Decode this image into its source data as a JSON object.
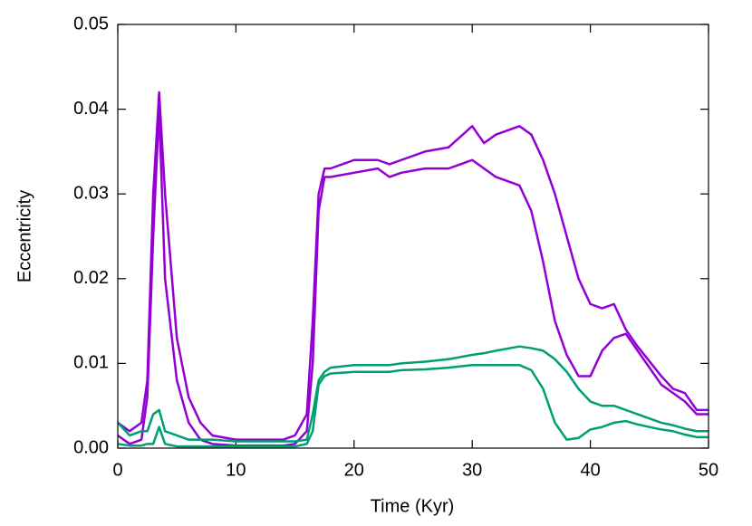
{
  "chart_data": {
    "type": "line",
    "x_label": "Time (Kyr)",
    "y_label": "Eccentricity",
    "x": [
      0,
      1,
      2,
      2.5,
      3,
      3.5,
      4,
      5,
      6,
      7,
      8,
      10,
      12,
      14,
      15,
      16,
      16.5,
      17,
      17.5,
      18,
      20,
      22,
      23,
      24,
      26,
      28,
      30,
      31,
      32,
      34,
      35,
      36,
      37,
      38,
      39,
      40,
      41,
      42,
      43,
      44,
      46,
      47,
      48,
      49,
      50
    ],
    "series": [
      {
        "color": "#9400d3",
        "values": [
          0.003,
          0.002,
          0.003,
          0.008,
          0.03,
          0.042,
          0.03,
          0.013,
          0.006,
          0.003,
          0.0015,
          0.001,
          0.001,
          0.001,
          0.0015,
          0.004,
          0.015,
          0.03,
          0.033,
          0.033,
          0.034,
          0.034,
          0.0335,
          0.034,
          0.035,
          0.0355,
          0.038,
          0.036,
          0.037,
          0.038,
          0.037,
          0.034,
          0.03,
          0.025,
          0.02,
          0.017,
          0.0165,
          0.017,
          0.014,
          0.012,
          0.0085,
          0.007,
          0.0065,
          0.0045,
          0.0045
        ]
      },
      {
        "color": "#9400d3",
        "values": [
          0.0015,
          0.0005,
          0.001,
          0.006,
          0.025,
          0.04,
          0.02,
          0.008,
          0.003,
          0.001,
          0.0005,
          0.0003,
          0.0003,
          0.0003,
          0.0005,
          0.002,
          0.01,
          0.028,
          0.032,
          0.032,
          0.0325,
          0.033,
          0.032,
          0.0325,
          0.033,
          0.033,
          0.034,
          0.033,
          0.032,
          0.031,
          0.028,
          0.022,
          0.015,
          0.011,
          0.0085,
          0.0085,
          0.0115,
          0.013,
          0.0135,
          0.0115,
          0.0075,
          0.0065,
          0.0055,
          0.004,
          0.004
        ]
      },
      {
        "color": "#009e73",
        "values": [
          0.003,
          0.0015,
          0.002,
          0.002,
          0.004,
          0.0045,
          0.002,
          0.0015,
          0.001,
          0.001,
          0.001,
          0.0008,
          0.0008,
          0.0008,
          0.0008,
          0.001,
          0.004,
          0.008,
          0.009,
          0.0095,
          0.0098,
          0.0098,
          0.0098,
          0.01,
          0.0102,
          0.0105,
          0.011,
          0.0112,
          0.0115,
          0.012,
          0.0118,
          0.0115,
          0.0105,
          0.009,
          0.007,
          0.0055,
          0.005,
          0.005,
          0.0045,
          0.004,
          0.003,
          0.0027,
          0.0023,
          0.002,
          0.002
        ]
      },
      {
        "color": "#009e73",
        "values": [
          0.0005,
          0.0003,
          0.0003,
          0.0005,
          0.0005,
          0.0025,
          0.0005,
          0.0002,
          0.0002,
          0.0002,
          0.0002,
          0.0002,
          0.0002,
          0.0002,
          0.0002,
          0.0005,
          0.002,
          0.0075,
          0.0085,
          0.0088,
          0.009,
          0.009,
          0.009,
          0.0092,
          0.0093,
          0.0095,
          0.0098,
          0.0098,
          0.0098,
          0.0098,
          0.0092,
          0.007,
          0.003,
          0.001,
          0.0012,
          0.0022,
          0.0025,
          0.003,
          0.0032,
          0.0028,
          0.0022,
          0.002,
          0.0016,
          0.0013,
          0.0013
        ]
      }
    ],
    "xlim": [
      0,
      50
    ],
    "xticks": [
      0,
      10,
      20,
      30,
      40,
      50
    ],
    "ylim": [
      0,
      0.05
    ],
    "yticks": [
      {
        "value": 0,
        "label": "0.00"
      },
      0.01,
      0.02,
      0.03,
      0.04,
      0.05
    ],
    "grid": false
  }
}
